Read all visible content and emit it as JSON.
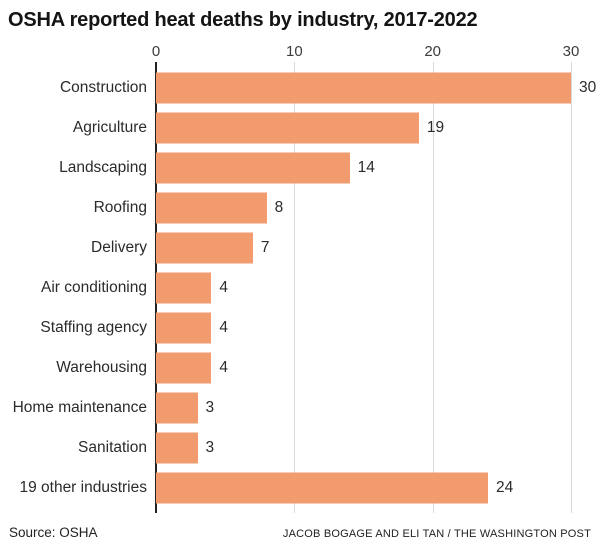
{
  "chart_data": {
    "type": "bar",
    "orientation": "horizontal",
    "title": "OSHA reported heat deaths by industry, 2017-2022",
    "categories": [
      "Construction",
      "Agriculture",
      "Landscaping",
      "Roofing",
      "Delivery",
      "Air conditioning",
      "Staffing agency",
      "Warehousing",
      "Home maintenance",
      "Sanitation",
      "19 other industries"
    ],
    "values": [
      30,
      19,
      14,
      8,
      7,
      4,
      4,
      4,
      3,
      3,
      24
    ],
    "xlabel": "",
    "ylabel": "",
    "xlim": [
      0,
      30
    ],
    "x_ticks": [
      0,
      10,
      20,
      30
    ],
    "grid": true,
    "gridline_color": "#d9d9d9",
    "axis_line_color": "#212121",
    "bar_color": "#F29B6E",
    "value_labels_shown": true,
    "legend": "none"
  },
  "footer": {
    "source": "Source: OSHA",
    "credit": "JACOB BOGAGE AND ELI TAN / THE WASHINGTON POST"
  }
}
